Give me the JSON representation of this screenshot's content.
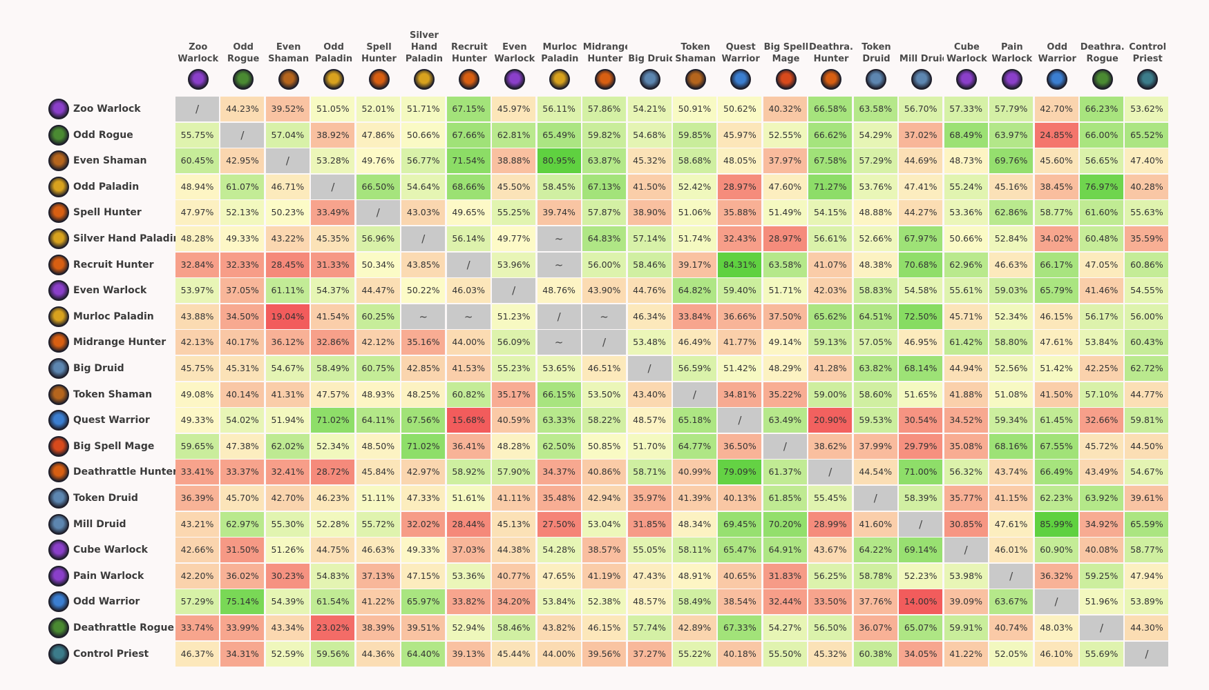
{
  "chart_data": {
    "type": "heatmap",
    "title": "",
    "xlabel": "",
    "ylabel": "",
    "decks": [
      "Zoo Warlock",
      "Odd Rogue",
      "Even Shaman",
      "Odd Paladin",
      "Spell Hunter",
      "Silver Hand Paladin",
      "Recruit Hunter",
      "Even Warlock",
      "Murloc Paladin",
      "Midrange Hunter",
      "Big Druid",
      "Token Shaman",
      "Quest Warrior",
      "Big Spell Mage",
      "Deathrattle Hunter",
      "Token Druid",
      "Mill Druid",
      "Cube Warlock",
      "Pain Warlock",
      "Odd Warrior",
      "Deathrattle Rogue",
      "Control Priest"
    ],
    "column_labels": [
      "Zoo|Warlock",
      "Odd|Rogue",
      "Even|Shaman",
      "Odd|Paladin",
      "Spell|Hunter",
      "Silver|Hand|Paladin",
      "Recruit|Hunter",
      "Even|Warlock",
      "Murloc|Paladin",
      "Midrange|Hunter",
      "Big Druid",
      "Token|Shaman",
      "Quest|Warrior",
      "Big Spell|Mage",
      "Deathra...|Hunter",
      "Token|Druid",
      "Mill Druid",
      "Cube|Warlock",
      "Pain|Warlock",
      "Odd|Warrior",
      "Deathra...|Rogue",
      "Control|Priest"
    ],
    "classes": [
      "warlock",
      "rogue",
      "shaman",
      "paladin",
      "hunter",
      "paladin",
      "hunter",
      "warlock",
      "paladin",
      "hunter",
      "druid",
      "shaman",
      "warrior",
      "mage",
      "hunter",
      "druid",
      "druid",
      "warlock",
      "warlock",
      "warrior",
      "rogue",
      "priest"
    ],
    "class_colors": {
      "warlock": "#8a3fc9",
      "rogue": "#4a8a32",
      "shaman": "#b5651d",
      "paladin": "#d8a21e",
      "hunter": "#d85f12",
      "druid": "#5d86b0",
      "warrior": "#3b7ed0",
      "mage": "#d84a1c",
      "priest": "#3c7c8a"
    },
    "color_scale": {
      "low": "#f25c5c",
      "mid": "#fdfbc8",
      "high": "#5fd140",
      "mirror": "#c9c9c9"
    },
    "mirror_symbol": "/",
    "na_symbol": "~",
    "values": [
      [
        "/",
        "44.23%",
        "39.52%",
        "51.05%",
        "52.01%",
        "51.71%",
        "67.15%",
        "45.97%",
        "56.11%",
        "57.86%",
        "54.21%",
        "50.91%",
        "50.62%",
        "40.32%",
        "66.58%",
        "63.58%",
        "56.70%",
        "57.33%",
        "57.79%",
        "42.70%",
        "66.23%",
        "53.62%"
      ],
      [
        "55.75%",
        "/",
        "57.04%",
        "38.92%",
        "47.86%",
        "50.66%",
        "67.66%",
        "62.81%",
        "65.49%",
        "59.82%",
        "54.68%",
        "59.85%",
        "45.97%",
        "52.55%",
        "66.62%",
        "54.29%",
        "37.02%",
        "68.49%",
        "63.97%",
        "24.85%",
        "66.00%",
        "65.52%"
      ],
      [
        "60.45%",
        "42.95%",
        "/",
        "53.28%",
        "49.76%",
        "56.77%",
        "71.54%",
        "38.88%",
        "80.95%",
        "63.87%",
        "45.32%",
        "58.68%",
        "48.05%",
        "37.97%",
        "67.58%",
        "57.29%",
        "44.69%",
        "48.73%",
        "69.76%",
        "45.60%",
        "56.65%",
        "47.40%"
      ],
      [
        "48.94%",
        "61.07%",
        "46.71%",
        "/",
        "66.50%",
        "54.64%",
        "68.66%",
        "45.50%",
        "58.45%",
        "67.13%",
        "41.50%",
        "52.42%",
        "28.97%",
        "47.60%",
        "71.27%",
        "53.76%",
        "47.41%",
        "55.24%",
        "45.16%",
        "38.45%",
        "76.97%",
        "40.28%"
      ],
      [
        "47.97%",
        "52.13%",
        "50.23%",
        "33.49%",
        "/",
        "43.03%",
        "49.65%",
        "55.25%",
        "39.74%",
        "57.87%",
        "38.90%",
        "51.06%",
        "35.88%",
        "51.49%",
        "54.15%",
        "48.88%",
        "44.27%",
        "53.36%",
        "62.86%",
        "58.77%",
        "61.60%",
        "55.63%"
      ],
      [
        "48.28%",
        "49.33%",
        "43.22%",
        "45.35%",
        "56.96%",
        "/",
        "56.14%",
        "49.77%",
        "~",
        "64.83%",
        "57.14%",
        "51.74%",
        "32.43%",
        "28.97%",
        "56.61%",
        "52.66%",
        "67.97%",
        "50.66%",
        "52.84%",
        "34.02%",
        "60.48%",
        "35.59%"
      ],
      [
        "32.84%",
        "32.33%",
        "28.45%",
        "31.33%",
        "50.34%",
        "43.85%",
        "/",
        "53.96%",
        "~",
        "56.00%",
        "58.46%",
        "39.17%",
        "84.31%",
        "63.58%",
        "41.07%",
        "48.38%",
        "70.68%",
        "62.96%",
        "46.63%",
        "66.17%",
        "47.05%",
        "60.86%"
      ],
      [
        "53.97%",
        "37.05%",
        "61.11%",
        "54.37%",
        "44.47%",
        "50.22%",
        "46.03%",
        "/",
        "48.76%",
        "43.90%",
        "44.76%",
        "64.82%",
        "59.40%",
        "51.71%",
        "42.03%",
        "58.83%",
        "54.58%",
        "55.61%",
        "59.03%",
        "65.79%",
        "41.46%",
        "54.55%"
      ],
      [
        "43.88%",
        "34.50%",
        "19.04%",
        "41.54%",
        "60.25%",
        "~",
        "~",
        "51.23%",
        "/",
        "~",
        "46.34%",
        "33.84%",
        "36.66%",
        "37.50%",
        "65.62%",
        "64.51%",
        "72.50%",
        "45.71%",
        "52.34%",
        "46.15%",
        "56.17%",
        "56.00%"
      ],
      [
        "42.13%",
        "40.17%",
        "36.12%",
        "32.86%",
        "42.12%",
        "35.16%",
        "44.00%",
        "56.09%",
        "~",
        "/",
        "53.48%",
        "46.49%",
        "41.77%",
        "49.14%",
        "59.13%",
        "57.05%",
        "46.95%",
        "61.42%",
        "58.80%",
        "47.61%",
        "53.84%",
        "60.43%"
      ],
      [
        "45.75%",
        "45.31%",
        "54.67%",
        "58.49%",
        "60.75%",
        "42.85%",
        "41.53%",
        "55.23%",
        "53.65%",
        "46.51%",
        "/",
        "56.59%",
        "51.42%",
        "48.29%",
        "41.28%",
        "63.82%",
        "68.14%",
        "44.94%",
        "52.56%",
        "51.42%",
        "42.25%",
        "62.72%"
      ],
      [
        "49.08%",
        "40.14%",
        "41.31%",
        "47.57%",
        "48.93%",
        "48.25%",
        "60.82%",
        "35.17%",
        "66.15%",
        "53.50%",
        "43.40%",
        "/",
        "34.81%",
        "35.22%",
        "59.00%",
        "58.60%",
        "51.65%",
        "41.88%",
        "51.08%",
        "41.50%",
        "57.10%",
        "44.77%"
      ],
      [
        "49.33%",
        "54.02%",
        "51.94%",
        "71.02%",
        "64.11%",
        "67.56%",
        "15.68%",
        "40.59%",
        "63.33%",
        "58.22%",
        "48.57%",
        "65.18%",
        "/",
        "63.49%",
        "20.90%",
        "59.53%",
        "30.54%",
        "34.52%",
        "59.34%",
        "61.45%",
        "32.66%",
        "59.81%"
      ],
      [
        "59.65%",
        "47.38%",
        "62.02%",
        "52.34%",
        "48.50%",
        "71.02%",
        "36.41%",
        "48.28%",
        "62.50%",
        "50.85%",
        "51.70%",
        "64.77%",
        "36.50%",
        "/",
        "38.62%",
        "37.99%",
        "29.79%",
        "35.08%",
        "68.16%",
        "67.55%",
        "45.72%",
        "44.50%"
      ],
      [
        "33.41%",
        "33.37%",
        "32.41%",
        "28.72%",
        "45.84%",
        "42.97%",
        "58.92%",
        "57.90%",
        "34.37%",
        "40.86%",
        "58.71%",
        "40.99%",
        "79.09%",
        "61.37%",
        "/",
        "44.54%",
        "71.00%",
        "56.32%",
        "43.74%",
        "66.49%",
        "43.49%",
        "54.67%"
      ],
      [
        "36.39%",
        "45.70%",
        "42.70%",
        "46.23%",
        "51.11%",
        "47.33%",
        "51.61%",
        "41.11%",
        "35.48%",
        "42.94%",
        "35.97%",
        "41.39%",
        "40.13%",
        "61.85%",
        "55.45%",
        "/",
        "58.39%",
        "35.77%",
        "41.15%",
        "62.23%",
        "63.92%",
        "39.61%"
      ],
      [
        "43.21%",
        "62.97%",
        "55.30%",
        "52.28%",
        "55.72%",
        "32.02%",
        "28.44%",
        "45.13%",
        "27.50%",
        "53.04%",
        "31.85%",
        "48.34%",
        "69.45%",
        "70.20%",
        "28.99%",
        "41.60%",
        "/",
        "30.85%",
        "47.61%",
        "85.99%",
        "34.92%",
        "65.59%"
      ],
      [
        "42.66%",
        "31.50%",
        "51.26%",
        "44.75%",
        "46.63%",
        "49.33%",
        "37.03%",
        "44.38%",
        "54.28%",
        "38.57%",
        "55.05%",
        "58.11%",
        "65.47%",
        "64.91%",
        "43.67%",
        "64.22%",
        "69.14%",
        "/",
        "46.01%",
        "60.90%",
        "40.08%",
        "58.77%"
      ],
      [
        "42.20%",
        "36.02%",
        "30.23%",
        "54.83%",
        "37.13%",
        "47.15%",
        "53.36%",
        "40.77%",
        "47.65%",
        "41.19%",
        "47.43%",
        "48.91%",
        "40.65%",
        "31.83%",
        "56.25%",
        "58.78%",
        "52.23%",
        "53.98%",
        "/",
        "36.32%",
        "59.25%",
        "47.94%"
      ],
      [
        "57.29%",
        "75.14%",
        "54.39%",
        "61.54%",
        "41.22%",
        "65.97%",
        "33.82%",
        "34.20%",
        "53.84%",
        "52.38%",
        "48.57%",
        "58.49%",
        "38.54%",
        "32.44%",
        "33.50%",
        "37.76%",
        "14.00%",
        "39.09%",
        "63.67%",
        "/",
        "51.96%",
        "53.89%"
      ],
      [
        "33.74%",
        "33.99%",
        "43.34%",
        "23.02%",
        "38.39%",
        "39.51%",
        "52.94%",
        "58.46%",
        "43.82%",
        "46.15%",
        "57.74%",
        "42.89%",
        "67.33%",
        "54.27%",
        "56.50%",
        "36.07%",
        "65.07%",
        "59.91%",
        "40.74%",
        "48.03%",
        "/",
        "44.30%"
      ],
      [
        "46.37%",
        "34.31%",
        "52.59%",
        "59.56%",
        "44.36%",
        "64.40%",
        "39.13%",
        "45.44%",
        "44.00%",
        "39.56%",
        "37.27%",
        "55.22%",
        "40.18%",
        "55.50%",
        "45.32%",
        "60.38%",
        "34.05%",
        "41.22%",
        "52.05%",
        "46.10%",
        "55.69%",
        "/"
      ]
    ]
  }
}
